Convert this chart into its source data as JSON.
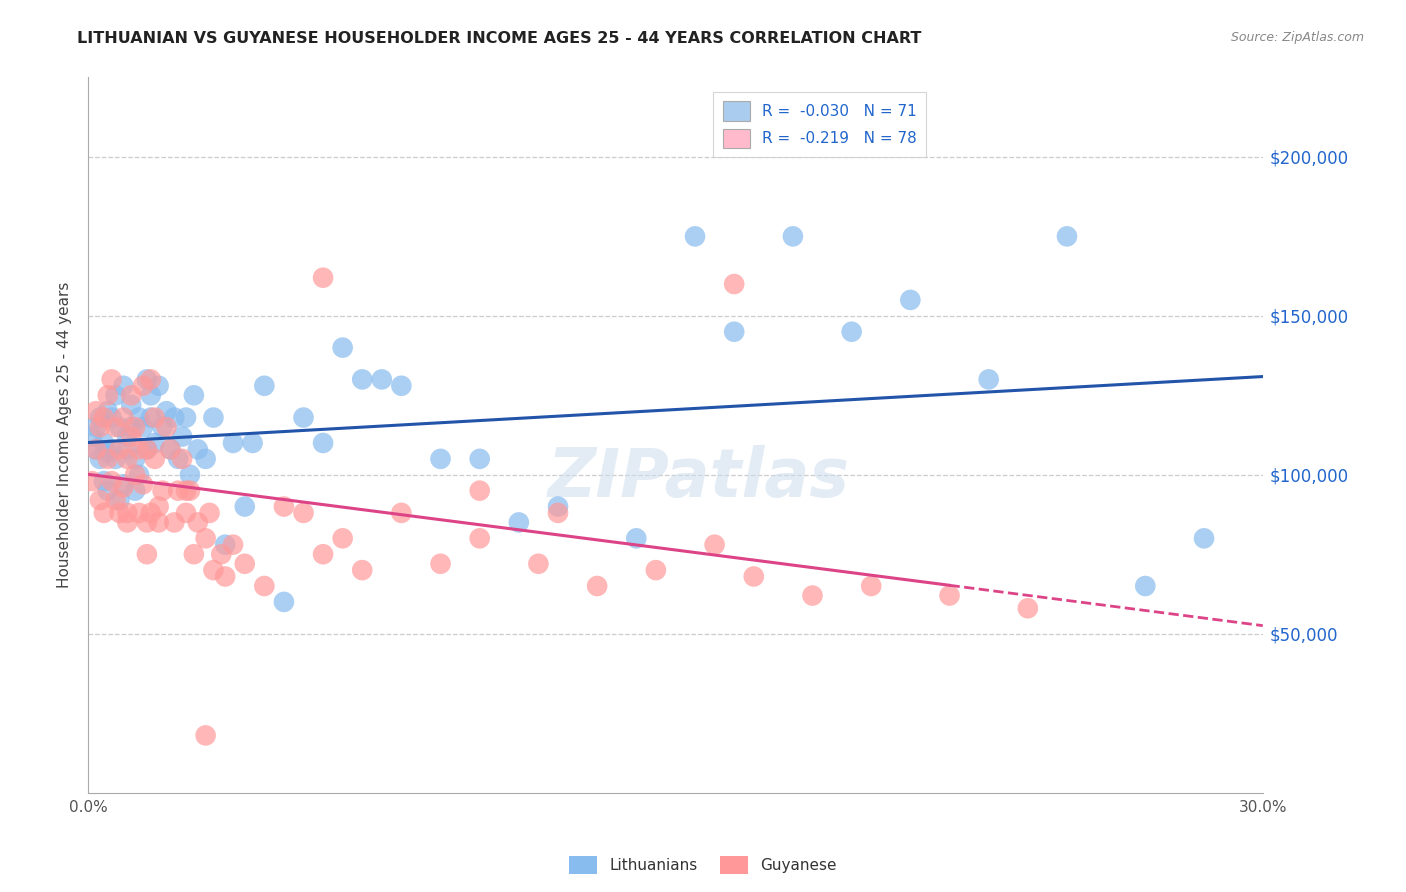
{
  "title": "LITHUANIAN VS GUYANESE HOUSEHOLDER INCOME AGES 25 - 44 YEARS CORRELATION CHART",
  "source": "Source: ZipAtlas.com",
  "ylabel": "Householder Income Ages 25 - 44 years",
  "ytick_labels": [
    "$50,000",
    "$100,000",
    "$150,000",
    "$200,000"
  ],
  "ytick_values": [
    50000,
    100000,
    150000,
    200000
  ],
  "legend_entry1": "R =  -0.030   N = 71",
  "legend_entry2": "R =  -0.219   N = 78",
  "legend_label1": "Lithuanians",
  "legend_label2": "Guyanese",
  "blue_color": "#88bbee",
  "pink_color": "#ff9999",
  "blue_line_color": "#2255aa",
  "pink_line_color": "#dd4488",
  "blue_fill": "#aaccee",
  "pink_fill": "#ffbbcc",
  "xmin": 0.0,
  "xmax": 0.3,
  "ymin": 0,
  "ymax": 225000,
  "blue_x": [
    0.001,
    0.002,
    0.002,
    0.003,
    0.003,
    0.004,
    0.004,
    0.005,
    0.005,
    0.005,
    0.006,
    0.006,
    0.007,
    0.007,
    0.008,
    0.008,
    0.009,
    0.009,
    0.01,
    0.01,
    0.011,
    0.011,
    0.012,
    0.012,
    0.013,
    0.013,
    0.014,
    0.015,
    0.015,
    0.016,
    0.016,
    0.017,
    0.018,
    0.019,
    0.02,
    0.021,
    0.022,
    0.023,
    0.024,
    0.025,
    0.026,
    0.027,
    0.028,
    0.03,
    0.032,
    0.035,
    0.037,
    0.04,
    0.042,
    0.045,
    0.05,
    0.055,
    0.06,
    0.065,
    0.07,
    0.075,
    0.08,
    0.09,
    0.1,
    0.11,
    0.12,
    0.14,
    0.155,
    0.165,
    0.18,
    0.195,
    0.21,
    0.23,
    0.25,
    0.27,
    0.285
  ],
  "blue_y": [
    112000,
    108000,
    115000,
    105000,
    118000,
    110000,
    98000,
    120000,
    107000,
    95000,
    108000,
    118000,
    125000,
    105000,
    115000,
    92000,
    128000,
    97000,
    108000,
    112000,
    122000,
    115000,
    95000,
    105000,
    100000,
    118000,
    115000,
    130000,
    108000,
    125000,
    118000,
    110000,
    128000,
    115000,
    120000,
    108000,
    118000,
    105000,
    112000,
    118000,
    100000,
    125000,
    108000,
    105000,
    118000,
    78000,
    110000,
    90000,
    110000,
    128000,
    60000,
    118000,
    110000,
    140000,
    130000,
    130000,
    128000,
    105000,
    105000,
    85000,
    90000,
    80000,
    175000,
    145000,
    175000,
    145000,
    155000,
    130000,
    175000,
    65000,
    80000
  ],
  "pink_x": [
    0.001,
    0.002,
    0.002,
    0.003,
    0.003,
    0.004,
    0.004,
    0.005,
    0.005,
    0.006,
    0.006,
    0.007,
    0.007,
    0.008,
    0.008,
    0.009,
    0.009,
    0.01,
    0.01,
    0.011,
    0.011,
    0.012,
    0.012,
    0.013,
    0.013,
    0.014,
    0.014,
    0.015,
    0.015,
    0.016,
    0.016,
    0.017,
    0.017,
    0.018,
    0.018,
    0.019,
    0.02,
    0.021,
    0.022,
    0.023,
    0.024,
    0.025,
    0.026,
    0.027,
    0.028,
    0.03,
    0.031,
    0.032,
    0.034,
    0.035,
    0.037,
    0.04,
    0.045,
    0.05,
    0.055,
    0.06,
    0.065,
    0.07,
    0.08,
    0.09,
    0.1,
    0.115,
    0.13,
    0.145,
    0.16,
    0.17,
    0.185,
    0.2,
    0.22,
    0.24,
    0.165,
    0.06,
    0.1,
    0.12,
    0.03,
    0.025,
    0.01,
    0.015
  ],
  "pink_y": [
    98000,
    108000,
    120000,
    115000,
    92000,
    118000,
    88000,
    125000,
    105000,
    130000,
    98000,
    115000,
    92000,
    108000,
    88000,
    118000,
    96000,
    105000,
    88000,
    112000,
    125000,
    100000,
    115000,
    88000,
    108000,
    128000,
    97000,
    108000,
    85000,
    130000,
    88000,
    105000,
    118000,
    90000,
    85000,
    95000,
    115000,
    108000,
    85000,
    95000,
    105000,
    88000,
    95000,
    75000,
    85000,
    80000,
    88000,
    70000,
    75000,
    68000,
    78000,
    72000,
    65000,
    90000,
    88000,
    75000,
    80000,
    70000,
    88000,
    72000,
    80000,
    72000,
    65000,
    70000,
    78000,
    68000,
    62000,
    65000,
    62000,
    58000,
    160000,
    162000,
    95000,
    88000,
    18000,
    95000,
    85000,
    75000
  ]
}
